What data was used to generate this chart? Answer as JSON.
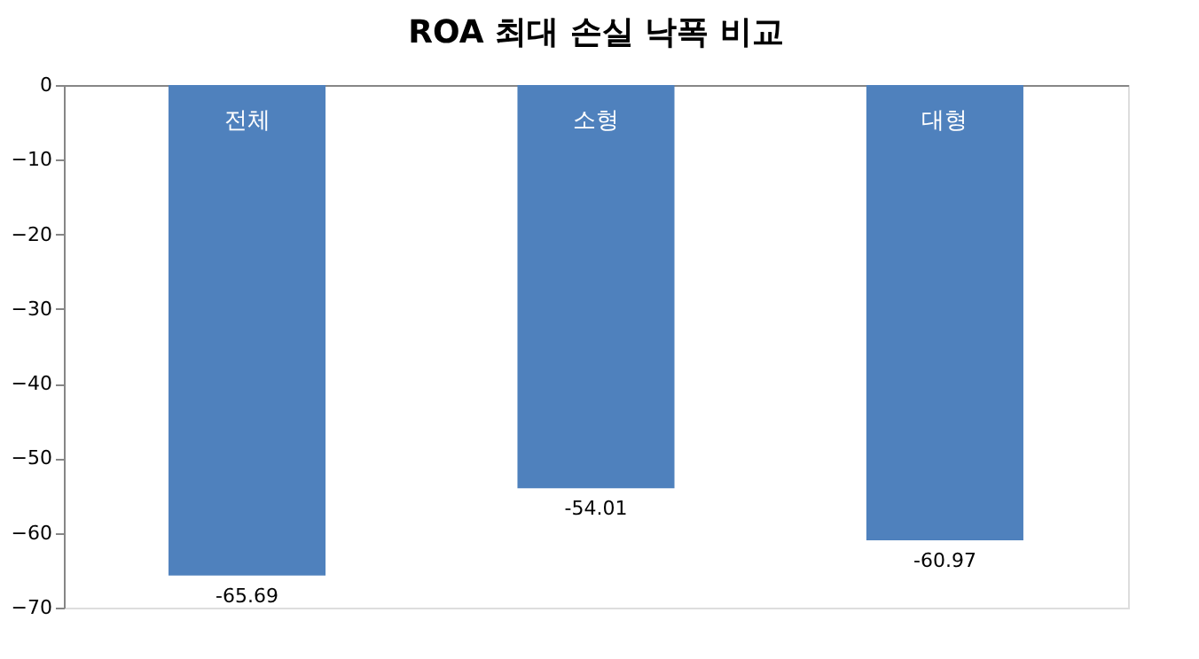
{
  "chart_data": {
    "type": "bar",
    "title": "ROA 최대 손실 낙폭 비교",
    "categories": [
      "전체",
      "소형",
      "대형"
    ],
    "values": [
      -65.69,
      -54.01,
      -60.97
    ],
    "color": "#4f81bd",
    "ylim": [
      -70,
      0
    ],
    "yticks": [
      -70,
      -60,
      -50,
      -40,
      -30,
      -20,
      -10,
      0
    ],
    "grid": false,
    "data_labels": true,
    "tick_labels": "y"
  }
}
